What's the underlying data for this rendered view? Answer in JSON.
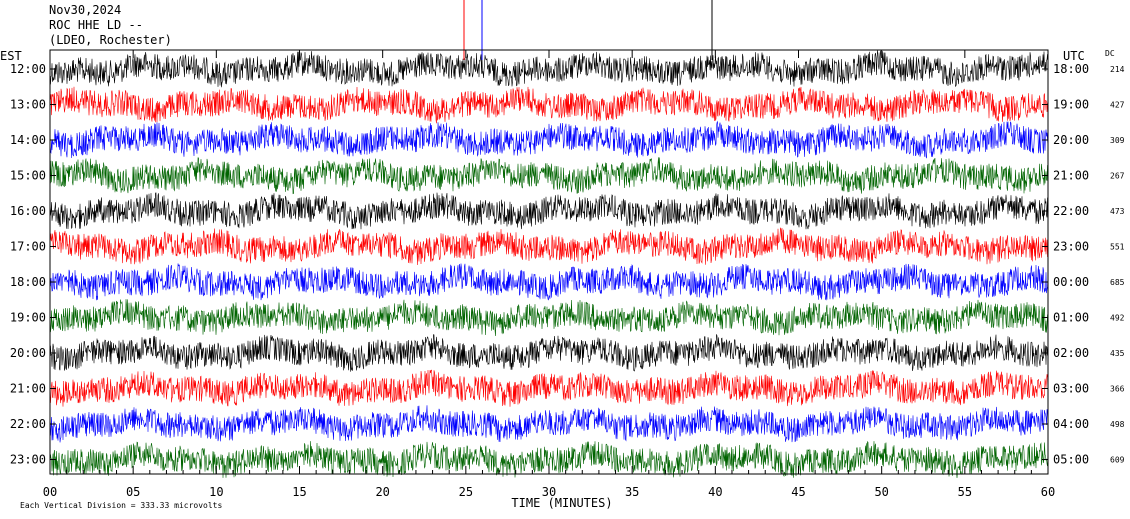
{
  "header": {
    "date": "Nov30,2024",
    "station": "ROC HHE LD --",
    "network": "(LDEO, Rochester)"
  },
  "chart_data": {
    "type": "line",
    "left_zone_label": "EST",
    "right_zone_label": "UTC",
    "dc_label": "DC",
    "xlabel": "TIME (MINUTES)",
    "xlim": [
      0,
      60
    ],
    "x_ticks": [
      "00",
      "05",
      "10",
      "15",
      "20",
      "25",
      "30",
      "35",
      "40",
      "45",
      "50",
      "55",
      "60"
    ],
    "footer_note": "Each Vertical Division =  333.33 microvolts",
    "colors": [
      "#000000",
      "#ff0000",
      "#0000ff",
      "#006400"
    ],
    "rows": [
      {
        "est": "12:00",
        "utc": "18:00",
        "dc": "214"
      },
      {
        "est": "13:00",
        "utc": "19:00",
        "dc": "427"
      },
      {
        "est": "14:00",
        "utc": "20:00",
        "dc": "309"
      },
      {
        "est": "15:00",
        "utc": "21:00",
        "dc": "267"
      },
      {
        "est": "16:00",
        "utc": "22:00",
        "dc": "473"
      },
      {
        "est": "17:00",
        "utc": "23:00",
        "dc": "551"
      },
      {
        "est": "18:00",
        "utc": "00:00",
        "dc": "685"
      },
      {
        "est": "19:00",
        "utc": "01:00",
        "dc": "492"
      },
      {
        "est": "20:00",
        "utc": "02:00",
        "dc": "435"
      },
      {
        "est": "21:00",
        "utc": "03:00",
        "dc": "366"
      },
      {
        "est": "22:00",
        "utc": "04:00",
        "dc": "498"
      },
      {
        "est": "23:00",
        "utc": "05:00",
        "dc": "609"
      }
    ]
  }
}
